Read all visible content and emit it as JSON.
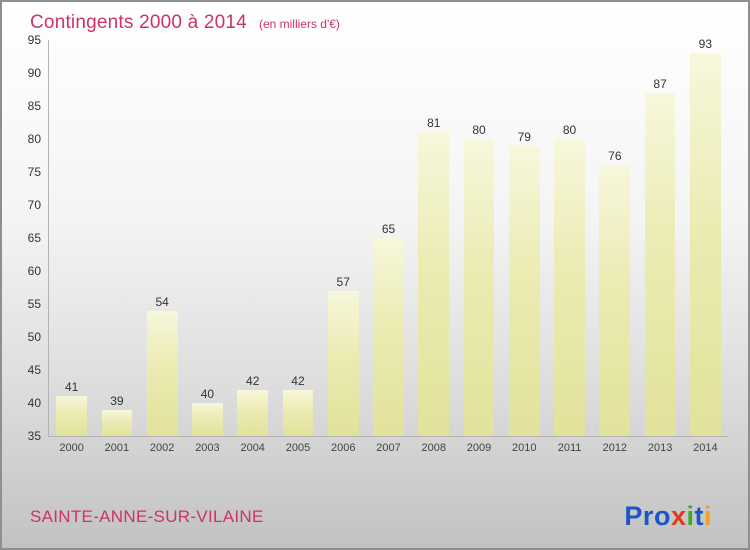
{
  "chart_data": {
    "type": "bar",
    "title": "Contingents 2000 à 2014",
    "subtitle": "(en milliers d'€)",
    "categories": [
      "2000",
      "2001",
      "2002",
      "2003",
      "2004",
      "2005",
      "2006",
      "2007",
      "2008",
      "2009",
      "2010",
      "2011",
      "2012",
      "2013",
      "2014"
    ],
    "values": [
      41,
      39,
      54,
      40,
      42,
      42,
      57,
      65,
      81,
      80,
      79,
      80,
      76,
      87,
      93
    ],
    "xlabel": "",
    "ylabel": "",
    "ylim": [
      35,
      95
    ],
    "ytick_step": 5,
    "grid": false,
    "legend": false,
    "bar_color_top": "#f7f7dc",
    "bar_color_bottom": "#e2e29b"
  },
  "colors": {
    "title": "#cc3366",
    "location": "#cc3366",
    "tick_label": "#333333",
    "value_label": "#333333",
    "border": "#8f8f8f"
  },
  "footer": {
    "location": "SAINTE-ANNE-SUR-VILAINE",
    "logo": {
      "text": "Proxiti",
      "letters": [
        {
          "char": "P",
          "color": "#1a56c8"
        },
        {
          "char": "r",
          "color": "#1a56c8"
        },
        {
          "char": "o",
          "color": "#1a56c8"
        },
        {
          "char": "x",
          "color": "#e0391e"
        },
        {
          "char": "i",
          "color": "#3aa832"
        },
        {
          "char": "t",
          "color": "#1a56c8"
        },
        {
          "char": "i",
          "color": "#f59f1e"
        }
      ]
    }
  }
}
